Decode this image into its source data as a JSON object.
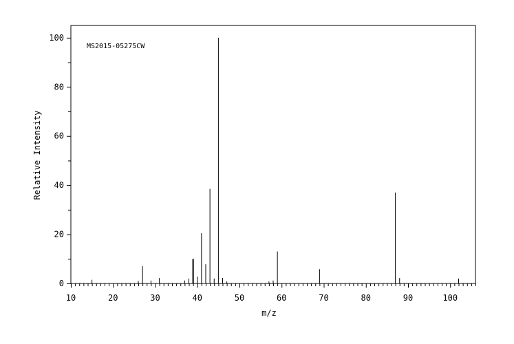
{
  "chart_data": {
    "type": "bar",
    "title": "",
    "annotation": "MS2015-05275CW",
    "xlabel": "m/z",
    "ylabel": "Relative Intensity",
    "xlim": [
      10,
      106
    ],
    "ylim": [
      0,
      105
    ],
    "x_ticks": [
      "10",
      "20",
      "30",
      "40",
      "50",
      "60",
      "70",
      "80",
      "90",
      "100"
    ],
    "y_ticks": [
      "0",
      "20",
      "40",
      "60",
      "80",
      "100"
    ],
    "grid": false,
    "legend": "none",
    "peaks": [
      {
        "mz": 15,
        "intensity": 1.5
      },
      {
        "mz": 26,
        "intensity": 1.0
      },
      {
        "mz": 27,
        "intensity": 7.0
      },
      {
        "mz": 29,
        "intensity": 1.2
      },
      {
        "mz": 31,
        "intensity": 2.2
      },
      {
        "mz": 37,
        "intensity": 1.2
      },
      {
        "mz": 38,
        "intensity": 2.0
      },
      {
        "mz": 39,
        "intensity": 10.0
      },
      {
        "mz": 40,
        "intensity": 2.8
      },
      {
        "mz": 41,
        "intensity": 20.5
      },
      {
        "mz": 42,
        "intensity": 7.8
      },
      {
        "mz": 43,
        "intensity": 38.5
      },
      {
        "mz": 44,
        "intensity": 2.0
      },
      {
        "mz": 45,
        "intensity": 100.0
      },
      {
        "mz": 46,
        "intensity": 2.2
      },
      {
        "mz": 47,
        "intensity": 0.8
      },
      {
        "mz": 57,
        "intensity": 0.8
      },
      {
        "mz": 58,
        "intensity": 1.2
      },
      {
        "mz": 59,
        "intensity": 13.0
      },
      {
        "mz": 69,
        "intensity": 5.8
      },
      {
        "mz": 87,
        "intensity": 37.0
      },
      {
        "mz": 88,
        "intensity": 2.2
      },
      {
        "mz": 102,
        "intensity": 2.0
      }
    ]
  }
}
